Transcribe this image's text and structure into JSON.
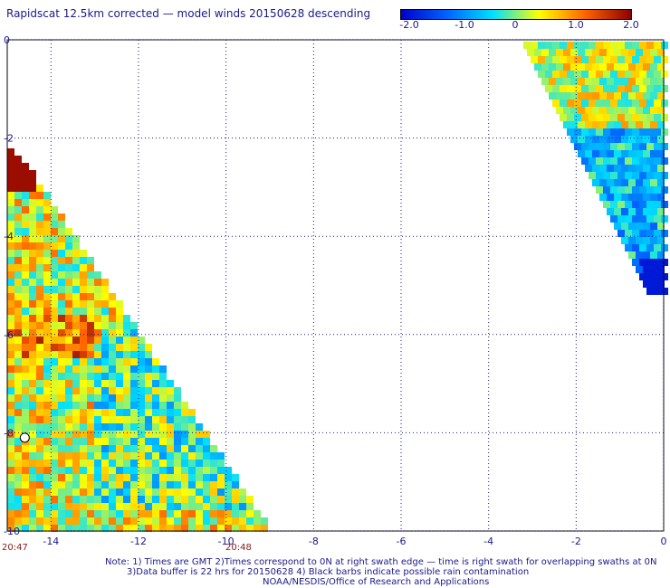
{
  "title": "Rapidscat 12.5km corrected — model winds 20150628 descending",
  "colorbar": {
    "ticks": [
      "-2.0",
      "-1.0",
      "0",
      "1.0",
      "2.0"
    ],
    "tick_values": [
      -2.0,
      -1.0,
      0,
      1.0,
      2.0
    ],
    "colors": [
      "#0000c8",
      "#0064ff",
      "#00e0ff",
      "#ffff00",
      "#ff6400",
      "#8b0000"
    ]
  },
  "chart_data": {
    "type": "heatmap",
    "title": "Rapidscat 12.5km corrected — model winds 20150628 descending",
    "xlabel": "",
    "ylabel": "",
    "xlim": [
      -15,
      0
    ],
    "ylim": [
      -10,
      0
    ],
    "x_ticks": [
      "-14",
      "-12",
      "-10",
      "-8",
      "-6",
      "-4",
      "-2",
      "0"
    ],
    "y_ticks": [
      "0",
      "-2",
      "-4",
      "-6",
      "-8",
      "-10"
    ],
    "value_range": [
      -2.0,
      2.0
    ],
    "grid": true,
    "swaths": [
      {
        "name": "",
        "description": "lower-left triangular swath, mostly positive differences (yellow-orange) with dark red patch near -15,-3",
        "lon_range": [
          -15,
          -9
        ],
        "lat_range": [
          -10,
          -2.2
        ]
      },
      {
        "name": "",
        "description": "upper-right triangular swath, mixed green-yellow near top, cyan-blue lower",
        "lon_range": [
          -3.2,
          0
        ],
        "lat_range": [
          -5.2,
          0
        ]
      }
    ]
  },
  "time_labels": {
    "left": "20:47",
    "right": "20:48"
  },
  "notes": {
    "line1": "Note: 1) Times are GMT 2)Times correspond to 0N at right swath edge — time is right swath for overlapping swaths at 0N",
    "line2": "3)Data buffer is 22 hrs for 20150628 4) Black barbs indicate possible rain contamination",
    "line3": "NOAA/NESDIS/Office of Research and Applications"
  }
}
